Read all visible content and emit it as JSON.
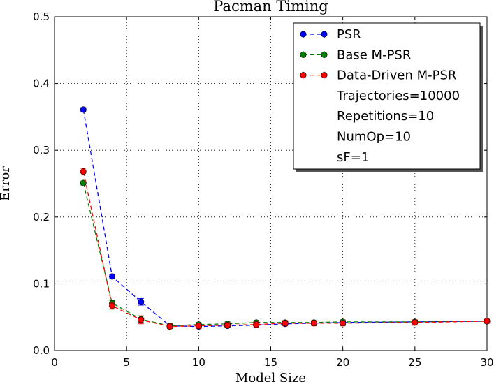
{
  "chart_data": {
    "type": "line",
    "title": "Pacman Timing",
    "xlabel": "Model Size",
    "ylabel": "Error",
    "xlim": [
      0,
      30
    ],
    "ylim": [
      0,
      0.5
    ],
    "xticks": [
      0,
      5,
      10,
      15,
      20,
      25,
      30
    ],
    "xtick_labels": [
      "0",
      "5",
      "10",
      "15",
      "20",
      "25",
      "30"
    ],
    "yticks": [
      0,
      0.1,
      0.2,
      0.3,
      0.4,
      0.5
    ],
    "ytick_labels": [
      "0.0",
      "0.1",
      "0.2",
      "0.3",
      "0.4",
      "0.5"
    ],
    "grid": true,
    "legend_position": "top-right",
    "series": [
      {
        "name": "PSR",
        "color": "#0000ff",
        "x": [
          2,
          4,
          6,
          8,
          10,
          12,
          14,
          16,
          18,
          20,
          25,
          30
        ],
        "y": [
          0.361,
          0.111,
          0.073,
          0.037,
          0.036,
          0.037,
          0.038,
          0.04,
          0.041,
          0.042,
          0.043,
          0.044
        ],
        "err": [
          0.003,
          0.003,
          0.005,
          0.004,
          0.003,
          0.003,
          0.003,
          0.003,
          0.003,
          0.003,
          0.003,
          0.003
        ]
      },
      {
        "name": "Base M-PSR",
        "color": "#008000",
        "x": [
          2,
          4,
          6,
          8,
          10,
          12,
          14,
          16,
          18,
          20,
          25,
          30
        ],
        "y": [
          0.251,
          0.071,
          0.047,
          0.037,
          0.039,
          0.04,
          0.042,
          0.042,
          0.042,
          0.043,
          0.043,
          0.044
        ],
        "err": [
          0.003,
          0.004,
          0.005,
          0.004,
          0.003,
          0.003,
          0.003,
          0.003,
          0.003,
          0.003,
          0.003,
          0.003
        ]
      },
      {
        "name": "Data-Driven M-PSR",
        "color": "#ff0000",
        "x": [
          2,
          4,
          6,
          8,
          10,
          12,
          14,
          16,
          18,
          20,
          25,
          30
        ],
        "y": [
          0.268,
          0.067,
          0.046,
          0.036,
          0.037,
          0.038,
          0.039,
          0.041,
          0.041,
          0.041,
          0.042,
          0.044
        ],
        "err": [
          0.005,
          0.005,
          0.006,
          0.005,
          0.004,
          0.004,
          0.004,
          0.004,
          0.004,
          0.004,
          0.004,
          0.003
        ]
      }
    ],
    "annotations": [
      "Trajectories=10000",
      "Repetitions=10",
      "NumOp=10",
      "sF=1"
    ]
  }
}
